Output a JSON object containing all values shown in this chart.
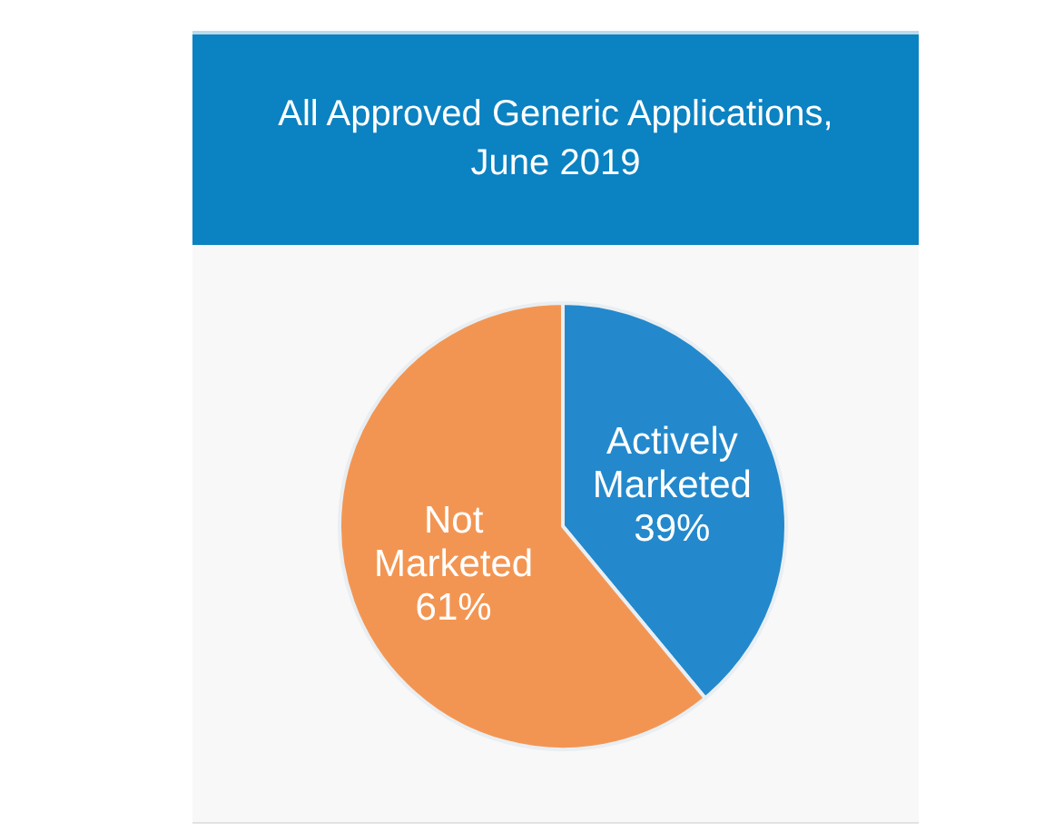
{
  "chart_data": {
    "type": "pie",
    "title": "All Approved Generic Applications, June 2019",
    "categories": [
      "Actively Marketed",
      "Not Marketed"
    ],
    "values": [
      39,
      61
    ],
    "colors": [
      "#2389cc",
      "#f39552"
    ],
    "value_labels": [
      "39%",
      "61%"
    ]
  }
}
